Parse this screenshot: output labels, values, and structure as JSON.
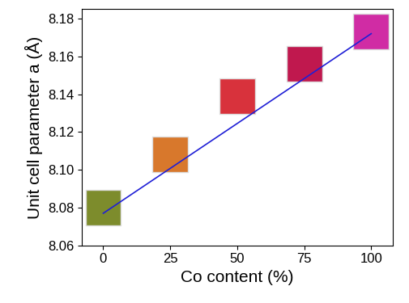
{
  "chart_data": {
    "type": "scatter",
    "x": [
      0,
      25,
      50,
      75,
      100
    ],
    "values": [
      8.08,
      8.108,
      8.139,
      8.156,
      8.173
    ],
    "colors": [
      "#7d8c2c",
      "#d8782c",
      "#d8323c",
      "#c0184e",
      "#d02ca4"
    ],
    "marker": "square",
    "fit": {
      "x": [
        0,
        100
      ],
      "values": [
        8.077,
        8.172
      ],
      "color": "#1f1fd6",
      "line_style": "solid"
    },
    "x_label": "Co content (%)",
    "y_label": "Unit cell parameter a (Å)",
    "xlim": [
      -8,
      108
    ],
    "xticks": [
      0,
      25,
      50,
      75,
      100
    ],
    "ylim": [
      8.06,
      8.185
    ],
    "yticks": [
      8.06,
      8.08,
      {
        "value": 8.1,
        "label": "8.10"
      },
      8.12,
      8.14,
      8.16,
      8.18
    ],
    "grid": false
  }
}
